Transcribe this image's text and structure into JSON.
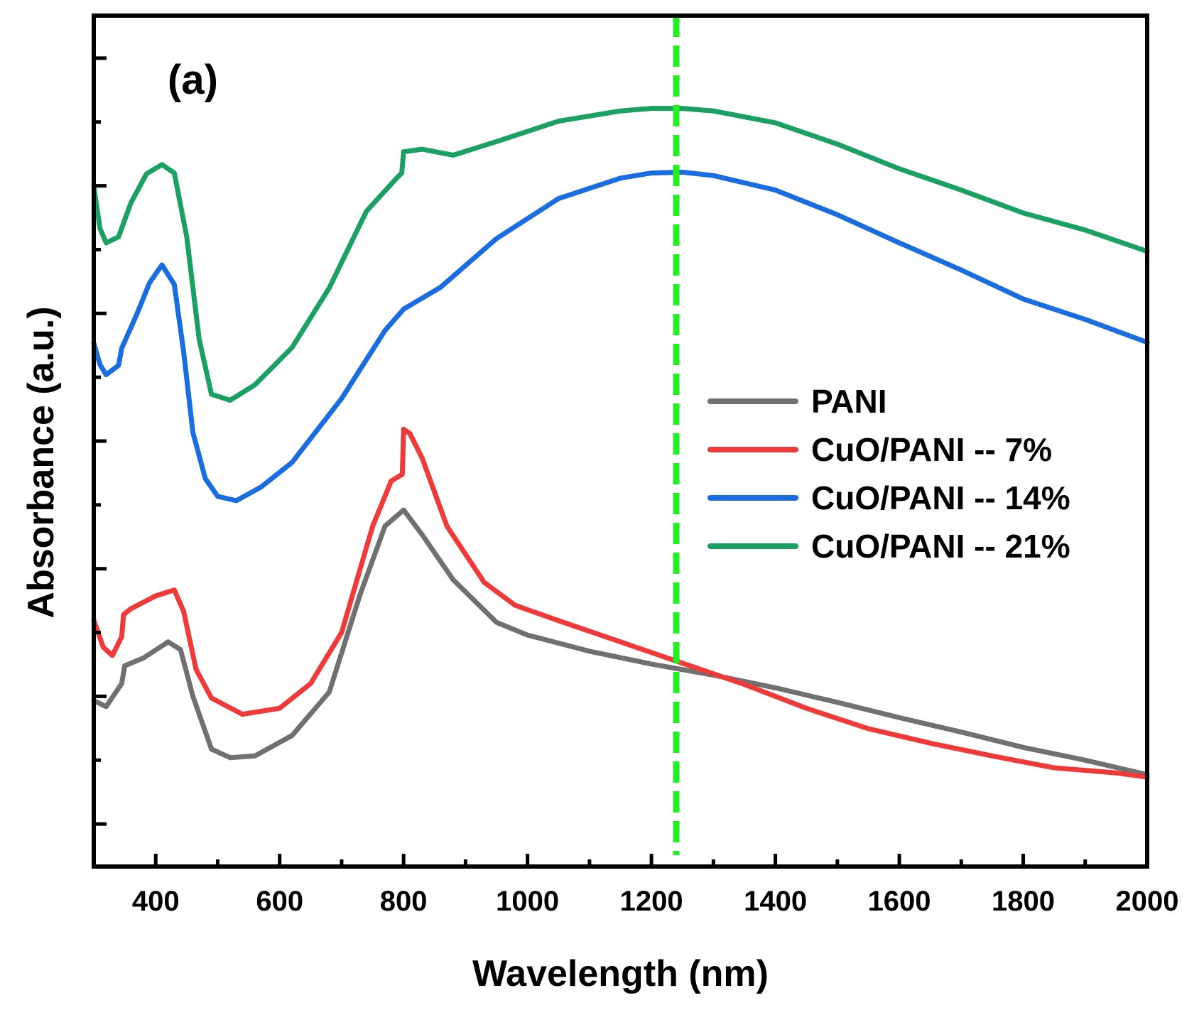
{
  "chart_data": {
    "type": "line",
    "panel_label": "(a)",
    "title": "",
    "xlabel": "Wavelength (nm)",
    "ylabel": "Absorbance (a.u.)",
    "xlim": [
      300,
      2000
    ],
    "ylim": [
      0,
      100
    ],
    "xticks": [
      400,
      600,
      800,
      1000,
      1200,
      1400,
      1600,
      1800,
      2000
    ],
    "xtick_labels": [
      "400",
      "600",
      "800",
      "1000",
      "1200",
      "1400",
      "1600",
      "1800",
      "2000"
    ],
    "yticks_major": [
      5,
      20,
      35,
      50,
      65,
      80,
      95
    ],
    "yticks_minor": [
      12.5,
      27.5,
      42.5,
      57.5,
      72.5,
      87.5
    ],
    "show_y_tick_labels": false,
    "grid": false,
    "legend_position": "right",
    "reference_line": {
      "x": 1240,
      "color": "#22ee22",
      "style": "dashed"
    },
    "series": [
      {
        "name": "PANI",
        "color": "#707070",
        "x": [
          300,
          320,
          345,
          350,
          380,
          420,
          440,
          460,
          490,
          520,
          560,
          620,
          680,
          730,
          770,
          800,
          830,
          880,
          950,
          1000,
          1100,
          1200,
          1300,
          1400,
          1500,
          1600,
          1700,
          1800,
          1900,
          2000
        ],
        "y": [
          19.5,
          18.8,
          21.5,
          23.6,
          24.5,
          26.4,
          25.5,
          20.0,
          13.8,
          12.8,
          13.0,
          15.4,
          20.5,
          32.0,
          40.0,
          41.9,
          39.0,
          33.7,
          28.7,
          27.2,
          25.3,
          23.8,
          22.5,
          21.0,
          19.3,
          17.5,
          15.8,
          14.0,
          12.5,
          10.8
        ]
      },
      {
        "name": "CuO/PANI -- 7%",
        "color": "#f03a3a",
        "x": [
          300,
          315,
          330,
          345,
          348,
          360,
          400,
          430,
          445,
          465,
          490,
          540,
          600,
          650,
          700,
          750,
          780,
          798,
          800,
          810,
          830,
          870,
          930,
          980,
          1050,
          1150,
          1250,
          1350,
          1450,
          1550,
          1650,
          1750,
          1850,
          1950,
          2000
        ],
        "y": [
          29.0,
          25.8,
          24.8,
          27.0,
          29.6,
          30.3,
          31.8,
          32.5,
          30.0,
          23.2,
          19.8,
          17.9,
          18.6,
          21.5,
          27.5,
          40.0,
          45.3,
          46.1,
          51.4,
          50.9,
          48.0,
          40.0,
          33.4,
          30.7,
          28.9,
          26.4,
          23.9,
          21.4,
          18.6,
          16.2,
          14.5,
          13.0,
          11.6,
          11.0,
          10.5
        ]
      },
      {
        "name": "CuO/PANI -- 14%",
        "color": "#1a6de0",
        "x": [
          300,
          310,
          320,
          340,
          345,
          350,
          370,
          390,
          410,
          430,
          445,
          460,
          480,
          500,
          530,
          570,
          620,
          700,
          770,
          800,
          860,
          950,
          1050,
          1150,
          1200,
          1250,
          1300,
          1400,
          1500,
          1600,
          1700,
          1800,
          1900,
          2000
        ],
        "y": [
          61.5,
          59.0,
          57.8,
          58.9,
          60.9,
          61.7,
          65.0,
          68.6,
          70.7,
          68.4,
          60.5,
          51.0,
          45.6,
          43.5,
          43.0,
          44.6,
          47.5,
          55.0,
          63.0,
          65.5,
          68.1,
          73.8,
          78.5,
          80.9,
          81.5,
          81.6,
          81.2,
          79.5,
          76.6,
          73.3,
          70.1,
          66.7,
          64.3,
          61.6
        ]
      },
      {
        "name": "CuO/PANI -- 21%",
        "color": "#19a062",
        "x": [
          300,
          310,
          320,
          340,
          360,
          385,
          410,
          430,
          450,
          470,
          490,
          520,
          560,
          620,
          680,
          740,
          790,
          797,
          800,
          830,
          880,
          950,
          1050,
          1150,
          1200,
          1250,
          1300,
          1400,
          1500,
          1600,
          1700,
          1800,
          1900,
          2000
        ],
        "y": [
          80.0,
          75.0,
          73.3,
          74.0,
          78.0,
          81.4,
          82.5,
          81.5,
          74.0,
          62.0,
          55.5,
          54.8,
          56.6,
          61.0,
          68.0,
          77.0,
          81.0,
          81.5,
          84.0,
          84.3,
          83.6,
          85.2,
          87.6,
          88.8,
          89.1,
          89.1,
          88.8,
          87.4,
          84.9,
          82.0,
          79.5,
          76.8,
          74.8,
          72.3
        ]
      }
    ]
  }
}
